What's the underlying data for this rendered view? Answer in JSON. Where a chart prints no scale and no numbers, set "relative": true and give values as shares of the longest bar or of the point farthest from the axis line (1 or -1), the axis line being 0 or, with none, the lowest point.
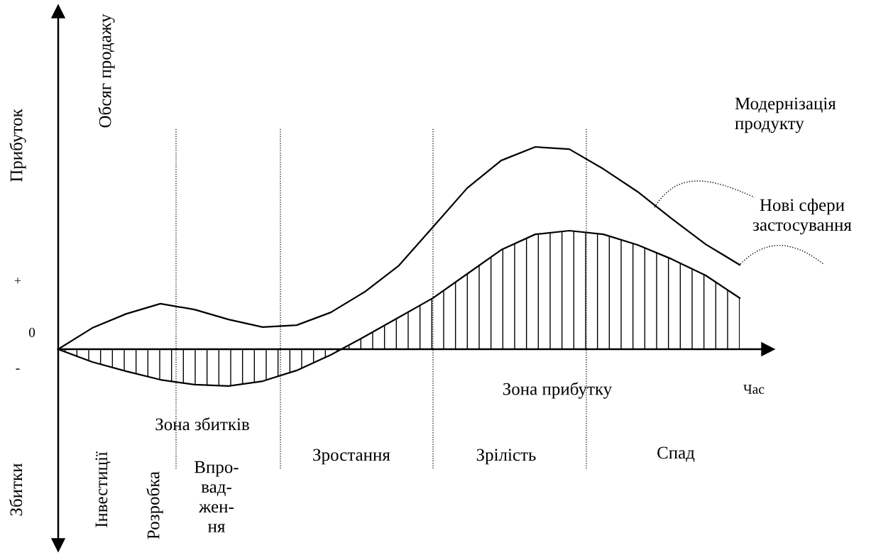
{
  "chart_data": {
    "type": "line",
    "relative": true,
    "xlabel": "Час",
    "ylabel": "Прибуток",
    "categories": [
      null,
      null,
      null,
      null,
      null,
      null,
      null,
      null,
      null,
      null,
      null,
      null,
      null,
      null,
      null,
      null,
      null,
      null,
      null,
      null,
      null
    ],
    "series": [
      {
        "color": "#000000",
        "values": [
          0,
          0.105,
          0.175,
          0.225,
          0.196,
          0.147,
          0.109,
          0.119,
          0.182,
          0.284,
          0.414,
          0.604,
          0.796,
          0.933,
          1.0,
          0.989,
          0.891,
          0.779,
          0.646,
          0.519,
          0.417
        ]
      },
      {
        "type": "area",
        "color": "#000000",
        "values": [
          0,
          -0.063,
          -0.109,
          -0.151,
          -0.175,
          -0.182,
          -0.158,
          -0.105,
          -0.028,
          0.063,
          0.158,
          0.253,
          0.372,
          0.491,
          0.568,
          0.586,
          0.568,
          0.516,
          0.446,
          0.365,
          0.253
        ]
      }
    ],
    "annotations": [
      "Збитки",
      "Обсяг продажу",
      "+",
      "0",
      "-",
      "Зона збитків",
      "Зона прибутку",
      "Інвестиції",
      "Розробка",
      "Впро-\nвад-\nжен-\nня",
      "Зростання",
      "Зрілість",
      "Спад",
      "Модернізація\nпродукту",
      "Нові сфери\nзастосування"
    ],
    "marker": "none",
    "line_style": "solid"
  }
}
